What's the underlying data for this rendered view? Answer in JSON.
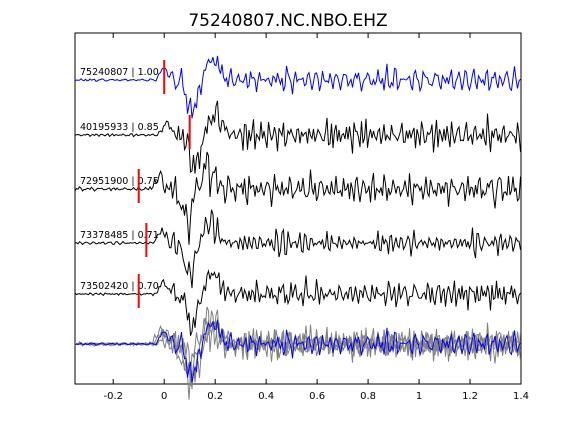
{
  "chart_data": {
    "type": "line",
    "title": "75240807.NC.NBO.EHZ",
    "xlabel": "",
    "ylabel": "",
    "xlim": [
      -0.35,
      1.4
    ],
    "x_ticks": [
      -0.2,
      0,
      0.2,
      0.4,
      0.6,
      0.8,
      1,
      1.2,
      1.4
    ],
    "x_tick_labels": [
      "-0.2",
      "0",
      "0.2",
      "0.4",
      "0.6",
      "0.8",
      "1",
      "1.2",
      "1.4"
    ],
    "y_ticks_shown": false,
    "grid": false,
    "legend": "none",
    "colors": {
      "reference_trace": "#0000ff",
      "trace": "#000000",
      "overlay_trace": "#808080",
      "pick": "#ff0000"
    },
    "traces": [
      {
        "id": "75240807",
        "cc": "1.00",
        "label": "75240807 | 1.00",
        "pick_time": 0.0,
        "color": "#0000ff"
      },
      {
        "id": "40195933",
        "cc": "0.85",
        "label": "40195933 | 0.85",
        "pick_time": 0.1,
        "color": "#000000"
      },
      {
        "id": "72951900",
        "cc": "0.75",
        "label": "72951900 | 0.75",
        "pick_time": -0.1,
        "color": "#000000"
      },
      {
        "id": "73378485",
        "cc": "0.71",
        "label": "73378485 | 0.71",
        "pick_time": -0.07,
        "color": "#000000"
      },
      {
        "id": "73502420",
        "cc": "0.70",
        "label": "73502420 | 0.70",
        "pick_time": -0.1,
        "color": "#000000"
      }
    ],
    "stack": {
      "name": "overlay",
      "reference_color": "#0000ff",
      "others_color": "#808080"
    }
  }
}
